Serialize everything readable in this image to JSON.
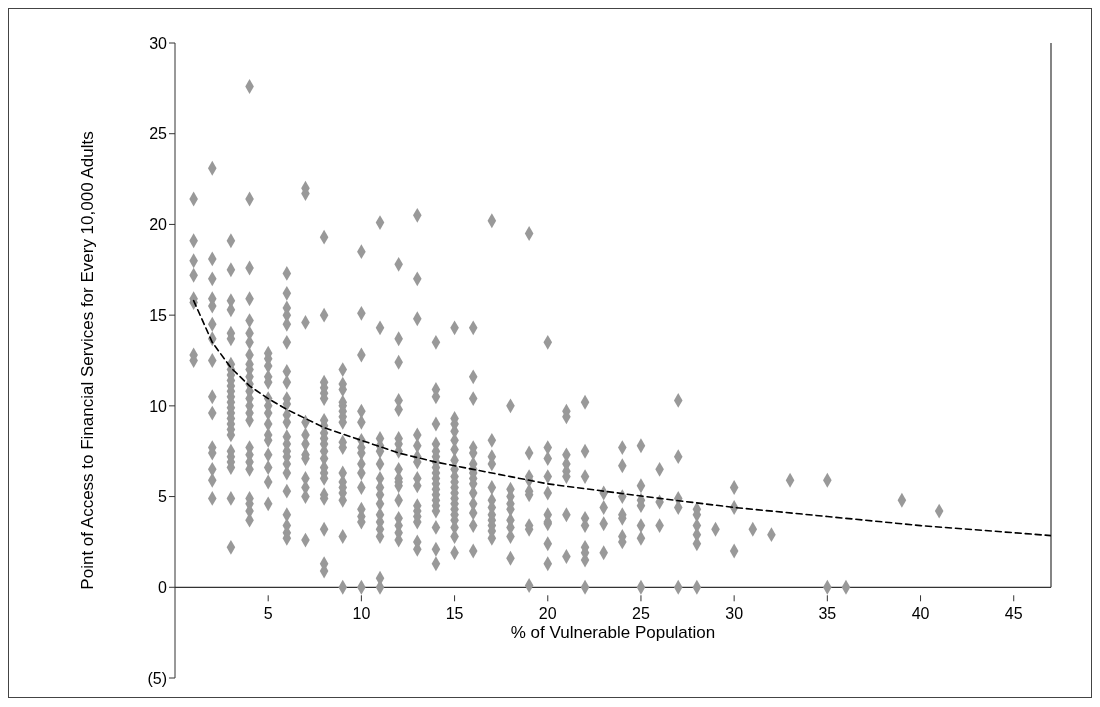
{
  "chart_data": {
    "type": "scatter",
    "xlabel": "% of Vulnerable Population",
    "ylabel": "Point of Access to Financial Services for Every 10,000 Adults",
    "xlim": [
      0,
      47
    ],
    "xticks": [
      5,
      10,
      15,
      20,
      25,
      30,
      35,
      40,
      45
    ],
    "ylim": [
      -5,
      30
    ],
    "yticks": [
      {
        "value": -5,
        "label": "(5)"
      },
      0,
      5,
      10,
      15,
      20,
      25,
      30
    ],
    "series": [
      {
        "type": "scatter",
        "marker": "diamond",
        "color": "#999999",
        "x": [
          1,
          1,
          1,
          1,
          1,
          1,
          1,
          1,
          2,
          2,
          2,
          2,
          2,
          2,
          2,
          2,
          2,
          2,
          2,
          2,
          2,
          2,
          2,
          3,
          3,
          3,
          3,
          3,
          3,
          3,
          3,
          3,
          3,
          3,
          3,
          3,
          3,
          3,
          3,
          3,
          3,
          3,
          3,
          3,
          3,
          3,
          3,
          3,
          3,
          4,
          4,
          4,
          4,
          4,
          4,
          4,
          4,
          4,
          4,
          4,
          4,
          4,
          4,
          4,
          4,
          4,
          4,
          4,
          4,
          4,
          4,
          4,
          4,
          4,
          5,
          5,
          5,
          5,
          5,
          5,
          5,
          5,
          5,
          5,
          5,
          5,
          5,
          5,
          5,
          6,
          6,
          6,
          6,
          6,
          6,
          6,
          6,
          6,
          6,
          6,
          6,
          6,
          6,
          6,
          6,
          6,
          6,
          6,
          6,
          6,
          6,
          6,
          7,
          7,
          7,
          7,
          7,
          7,
          7,
          7,
          7,
          7,
          7,
          7,
          8,
          8,
          8,
          8,
          8,
          8,
          8,
          8,
          8,
          8,
          8,
          8,
          8,
          8,
          8,
          8,
          8,
          8,
          8,
          8,
          8,
          9,
          9,
          9,
          9,
          9,
          9,
          9,
          9,
          9,
          9,
          9,
          9,
          9,
          9,
          9,
          9,
          9,
          10,
          10,
          10,
          10,
          10,
          10,
          10,
          10,
          10,
          10,
          10,
          10,
          10,
          10,
          10,
          11,
          11,
          11,
          11,
          11,
          11,
          11,
          11,
          11,
          11,
          11,
          11,
          11,
          11,
          11,
          11,
          12,
          12,
          12,
          12,
          12,
          12,
          12,
          12,
          12,
          12,
          12,
          12,
          12,
          12,
          12,
          12,
          12,
          13,
          13,
          13,
          13,
          13,
          13,
          13,
          13,
          13,
          13,
          13,
          13,
          13,
          13,
          13,
          14,
          14,
          14,
          14,
          14,
          14,
          14,
          14,
          14,
          14,
          14,
          14,
          14,
          14,
          14,
          14,
          14,
          14,
          14,
          14,
          15,
          15,
          15,
          15,
          15,
          15,
          15,
          15,
          15,
          15,
          15,
          15,
          15,
          15,
          15,
          15,
          15,
          15,
          15,
          15,
          16,
          16,
          16,
          16,
          16,
          16,
          16,
          16,
          16,
          16,
          16,
          16,
          16,
          16,
          16,
          17,
          17,
          17,
          17,
          17,
          17,
          17,
          17,
          17,
          17,
          17,
          17,
          18,
          18,
          18,
          18,
          18,
          18,
          18,
          18,
          18,
          19,
          19,
          19,
          19,
          19,
          19,
          19,
          19,
          19,
          20,
          20,
          20,
          20,
          20,
          20,
          20,
          20,
          20,
          20,
          21,
          21,
          21,
          21,
          21,
          21,
          21,
          21,
          22,
          22,
          22,
          22,
          22,
          22,
          22,
          22,
          22,
          23,
          23,
          23,
          23,
          24,
          24,
          24,
          24,
          24,
          24,
          24,
          25,
          25,
          25,
          25,
          25,
          25,
          25,
          26,
          26,
          26,
          27,
          27,
          27,
          27,
          27,
          28,
          28,
          28,
          28,
          28,
          28,
          29,
          30,
          30,
          30,
          31,
          32,
          33,
          35,
          35,
          36,
          39,
          41
        ],
        "values": [
          21.4,
          19.1,
          18.0,
          17.2,
          15.9,
          15.7,
          12.8,
          12.5,
          23.1,
          18.1,
          17.0,
          15.9,
          15.5,
          14.5,
          13.7,
          12.5,
          10.5,
          9.6,
          7.7,
          7.4,
          6.5,
          5.9,
          4.9,
          19.1,
          17.5,
          15.8,
          15.3,
          14.0,
          13.7,
          12.3,
          12.0,
          11.7,
          11.4,
          11.1,
          10.8,
          10.5,
          10.2,
          9.9,
          9.6,
          9.3,
          9.0,
          8.7,
          8.4,
          7.5,
          7.2,
          6.9,
          6.6,
          4.9,
          2.2,
          27.6,
          21.4,
          17.6,
          15.9,
          14.7,
          14.0,
          13.5,
          12.8,
          12.3,
          12.0,
          11.6,
          11.2,
          10.8,
          10.4,
          10.0,
          9.6,
          9.2,
          7.7,
          7.3,
          6.9,
          6.5,
          4.9,
          4.6,
          4.2,
          3.7,
          12.9,
          12.6,
          12.2,
          11.6,
          11.3,
          10.4,
          10.0,
          9.6,
          9.0,
          8.4,
          8.1,
          7.3,
          6.6,
          5.8,
          4.6,
          17.3,
          16.2,
          15.4,
          15.0,
          14.5,
          13.5,
          11.9,
          11.3,
          10.4,
          10.1,
          9.5,
          9.1,
          8.3,
          7.9,
          7.5,
          7.2,
          6.8,
          6.3,
          5.3,
          4.0,
          3.4,
          3.0,
          2.7,
          22.0,
          21.7,
          14.6,
          9.1,
          8.4,
          7.9,
          7.3,
          7.1,
          6.0,
          5.5,
          5.0,
          2.6,
          19.3,
          15.0,
          11.3,
          11.0,
          10.7,
          10.4,
          9.2,
          8.9,
          8.5,
          8.2,
          7.9,
          7.5,
          7.1,
          6.6,
          6.3,
          6.0,
          5.1,
          4.9,
          3.2,
          1.3,
          0.9,
          12.0,
          11.2,
          10.9,
          10.2,
          10.0,
          9.7,
          9.4,
          9.1,
          8.0,
          7.7,
          6.3,
          5.8,
          5.5,
          5.2,
          4.8,
          2.8,
          0,
          18.5,
          15.1,
          12.8,
          9.7,
          9.1,
          8.1,
          7.7,
          7.4,
          6.8,
          6.3,
          5.5,
          4.3,
          3.9,
          3.6,
          0,
          20.1,
          14.3,
          8.2,
          7.8,
          7.5,
          6.8,
          6.0,
          5.5,
          5.1,
          4.6,
          4.0,
          3.6,
          3.2,
          2.8,
          0.5,
          0,
          17.8,
          13.7,
          12.4,
          10.3,
          9.8,
          8.2,
          7.9,
          7.5,
          6.5,
          6.0,
          5.8,
          5.6,
          4.8,
          3.8,
          3.4,
          3.0,
          2.6,
          20.5,
          17.0,
          14.8,
          8.4,
          7.8,
          7.2,
          6.9,
          6.0,
          5.6,
          4.5,
          4.2,
          3.9,
          3.6,
          2.5,
          2.1,
          13.5,
          10.9,
          10.5,
          9.0,
          7.9,
          7.5,
          7.2,
          6.9,
          6.6,
          6.3,
          6.0,
          5.7,
          5.4,
          5.1,
          4.8,
          4.5,
          4.2,
          3.3,
          2.1,
          1.3,
          14.3,
          9.3,
          9.0,
          8.6,
          8.1,
          7.6,
          7.0,
          6.5,
          6.1,
          5.8,
          5.5,
          5.2,
          4.9,
          4.6,
          4.3,
          4.0,
          3.7,
          3.3,
          2.8,
          1.9,
          14.3,
          11.6,
          10.4,
          7.7,
          7.4,
          6.8,
          6.5,
          6.3,
          6.0,
          5.7,
          5.2,
          4.6,
          4.1,
          3.4,
          2.0,
          20.2,
          8.1,
          7.2,
          6.8,
          5.5,
          4.8,
          4.4,
          4.0,
          3.7,
          3.4,
          3.1,
          2.7,
          10.0,
          5.4,
          5.0,
          4.6,
          4.3,
          3.7,
          3.3,
          2.8,
          1.6,
          19.5,
          7.4,
          6.1,
          5.9,
          5.3,
          5.1,
          3.4,
          3.2,
          0.1,
          13.5,
          7.7,
          7.1,
          6.1,
          5.2,
          4.0,
          3.6,
          3.5,
          2.4,
          1.3,
          9.7,
          9.4,
          7.3,
          6.8,
          6.4,
          6.1,
          4.0,
          1.7,
          10.2,
          7.5,
          6.1,
          3.8,
          3.4,
          2.2,
          1.9,
          1.5,
          0,
          5.2,
          4.4,
          3.5,
          1.9,
          7.7,
          6.7,
          5.0,
          4.0,
          3.8,
          2.8,
          2.5,
          7.8,
          5.6,
          4.8,
          4.5,
          3.4,
          2.7,
          0,
          6.5,
          4.7,
          3.4,
          10.3,
          7.2,
          4.9,
          4.4,
          0,
          4.3,
          4.0,
          3.4,
          2.9,
          2.4,
          0,
          3.2,
          5.5,
          4.4,
          2.0,
          3.2,
          2.9,
          5.9,
          5.9,
          0,
          0,
          4.8,
          4.2
        ]
      },
      {
        "type": "line",
        "marker": "none",
        "line_style": "dashed",
        "color": "#000000",
        "x": [
          1,
          2,
          3,
          4,
          5,
          6,
          7,
          8,
          10,
          12,
          14,
          16,
          18,
          20,
          23,
          26,
          30,
          35,
          40,
          47
        ],
        "values": [
          15.8,
          13.5,
          12.1,
          11.1,
          10.4,
          9.8,
          9.3,
          8.8,
          8.1,
          7.4,
          6.9,
          6.5,
          6.1,
          5.7,
          5.3,
          4.9,
          4.4,
          3.9,
          3.4,
          2.85
        ]
      }
    ]
  }
}
